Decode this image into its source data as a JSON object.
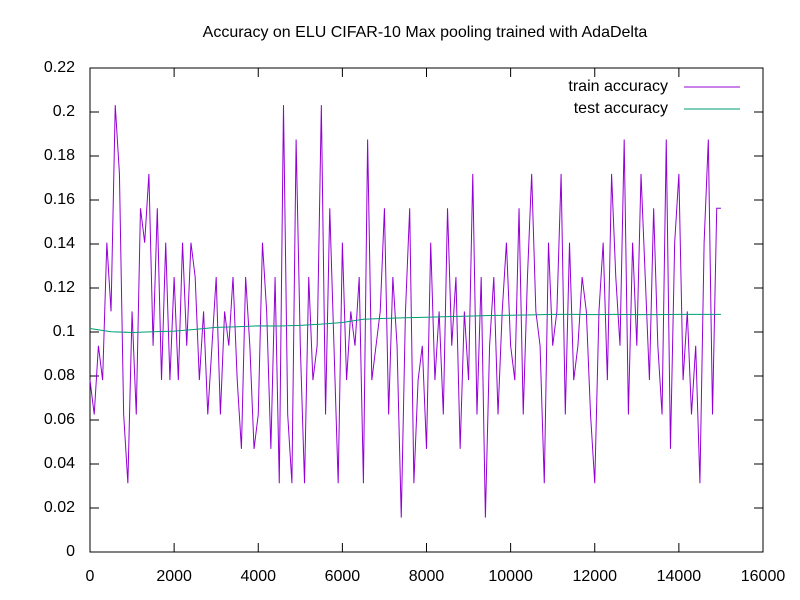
{
  "chart_data": {
    "type": "line",
    "title": "Accuracy on ELU CIFAR-10 Max pooling trained with AdaDelta",
    "xlim": [
      0,
      16000
    ],
    "xticks": [
      0,
      2000,
      4000,
      6000,
      8000,
      10000,
      12000,
      14000,
      16000
    ],
    "ylim": [
      0,
      0.22
    ],
    "yticks": [
      0,
      0.02,
      0.04,
      0.06,
      0.08,
      0.1,
      0.12,
      0.14,
      0.16,
      0.18,
      0.2,
      0.22
    ],
    "legend": "top-right",
    "series": [
      {
        "name": "train accuracy",
        "color": "#9400d3",
        "x": [
          0,
          100,
          200,
          300,
          400,
          500,
          600,
          700,
          800,
          900,
          1000,
          1100,
          1200,
          1300,
          1400,
          1500,
          1600,
          1700,
          1800,
          1900,
          2000,
          2100,
          2200,
          2300,
          2400,
          2500,
          2600,
          2700,
          2800,
          2900,
          3000,
          3100,
          3200,
          3300,
          3400,
          3500,
          3600,
          3700,
          3800,
          3900,
          4000,
          4100,
          4200,
          4300,
          4400,
          4500,
          4600,
          4700,
          4800,
          4900,
          5000,
          5100,
          5200,
          5300,
          5400,
          5500,
          5600,
          5700,
          5800,
          5900,
          6000,
          6100,
          6200,
          6300,
          6400,
          6500,
          6600,
          6700,
          6800,
          6900,
          7000,
          7100,
          7200,
          7300,
          7400,
          7500,
          7600,
          7700,
          7800,
          7900,
          8000,
          8100,
          8200,
          8300,
          8400,
          8500,
          8600,
          8700,
          8800,
          8900,
          9000,
          9100,
          9200,
          9300,
          9400,
          9500,
          9600,
          9700,
          9800,
          9900,
          10000,
          10100,
          10200,
          10300,
          10400,
          10500,
          10600,
          10700,
          10800,
          10900,
          11000,
          11100,
          11200,
          11300,
          11400,
          11500,
          11600,
          11700,
          11800,
          11900,
          12000,
          12100,
          12200,
          12300,
          12400,
          12500,
          12600,
          12700,
          12800,
          12900,
          13000,
          13100,
          13200,
          13300,
          13400,
          13500,
          13600,
          13700,
          13800,
          13900,
          14000,
          14100,
          14200,
          14300,
          14400,
          14500,
          14600,
          14700,
          14800,
          14900,
          15000
        ],
        "values": [
          0.078125,
          0.0625,
          0.09375,
          0.078125,
          0.140625,
          0.109375,
          0.203125,
          0.171875,
          0.0625,
          0.03125,
          0.109375,
          0.0625,
          0.15625,
          0.140625,
          0.171875,
          0.09375,
          0.15625,
          0.078125,
          0.140625,
          0.078125,
          0.125,
          0.078125,
          0.140625,
          0.09375,
          0.140625,
          0.125,
          0.078125,
          0.109375,
          0.0625,
          0.09375,
          0.125,
          0.0625,
          0.109375,
          0.09375,
          0.125,
          0.078125,
          0.046875,
          0.125,
          0.09375,
          0.046875,
          0.0625,
          0.140625,
          0.109375,
          0.046875,
          0.125,
          0.03125,
          0.203125,
          0.0625,
          0.03125,
          0.1875,
          0.09375,
          0.03125,
          0.125,
          0.078125,
          0.09375,
          0.203125,
          0.0625,
          0.15625,
          0.09375,
          0.03125,
          0.140625,
          0.078125,
          0.109375,
          0.09375,
          0.125,
          0.03125,
          0.1875,
          0.078125,
          0.09375,
          0.109375,
          0.15625,
          0.0625,
          0.125,
          0.09375,
          0.015625,
          0.109375,
          0.15625,
          0.03125,
          0.078125,
          0.09375,
          0.046875,
          0.140625,
          0.078125,
          0.109375,
          0.0625,
          0.15625,
          0.09375,
          0.125,
          0.046875,
          0.109375,
          0.078125,
          0.171875,
          0.0625,
          0.125,
          0.015625,
          0.09375,
          0.125,
          0.0625,
          0.109375,
          0.140625,
          0.09375,
          0.078125,
          0.15625,
          0.0625,
          0.125,
          0.171875,
          0.109375,
          0.09375,
          0.03125,
          0.140625,
          0.09375,
          0.109375,
          0.171875,
          0.0625,
          0.140625,
          0.078125,
          0.09375,
          0.125,
          0.109375,
          0.0625,
          0.03125,
          0.109375,
          0.140625,
          0.078125,
          0.171875,
          0.125,
          0.09375,
          0.1875,
          0.0625,
          0.140625,
          0.09375,
          0.171875,
          0.125,
          0.078125,
          0.15625,
          0.09375,
          0.0625,
          0.1875,
          0.046875,
          0.140625,
          0.171875,
          0.078125,
          0.109375,
          0.0625,
          0.09375,
          0.03125,
          0.140625,
          0.1875,
          0.0625,
          0.15625,
          0.15625
        ]
      },
      {
        "name": "test accuracy",
        "color": "#009e73",
        "x": [
          0,
          500,
          1000,
          1500,
          2000,
          2500,
          3000,
          3500,
          4000,
          4500,
          5000,
          5500,
          6000,
          6500,
          7000,
          7500,
          8000,
          8500,
          9000,
          9500,
          10000,
          10500,
          11000,
          11500,
          12000,
          12500,
          13000,
          13500,
          14000,
          14500,
          15000
        ],
        "values": [
          0.1016,
          0.1001,
          0.0998,
          0.1001,
          0.1004,
          0.1012,
          0.1021,
          0.1024,
          0.1028,
          0.1027,
          0.103,
          0.1036,
          0.1043,
          0.1058,
          0.1062,
          0.1065,
          0.1067,
          0.107,
          0.1072,
          0.1075,
          0.1076,
          0.1078,
          0.108,
          0.108,
          0.1079,
          0.108,
          0.1079,
          0.1079,
          0.108,
          0.108,
          0.108
        ]
      }
    ]
  }
}
